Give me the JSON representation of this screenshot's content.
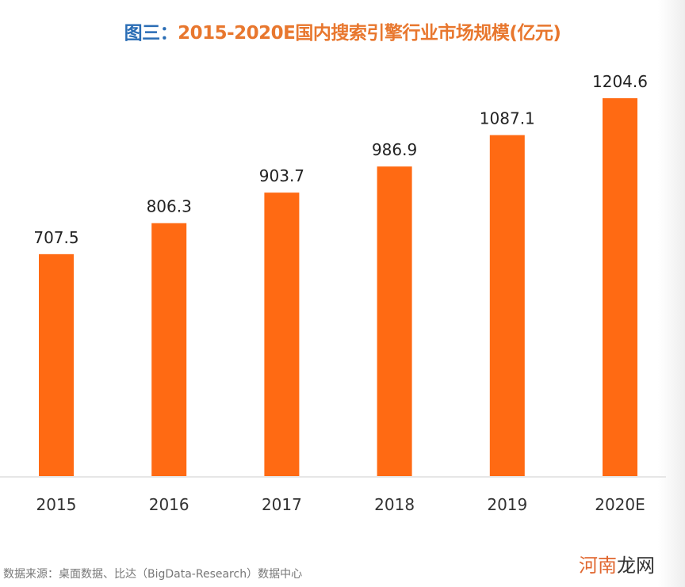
{
  "chart_data": {
    "type": "bar",
    "title_prefix": "图三：",
    "title": "2015-2020E国内搜索引擎行业市场规模(亿元)",
    "categories": [
      "2015",
      "2016",
      "2017",
      "2018",
      "2019",
      "2020E"
    ],
    "values": [
      707.5,
      806.3,
      903.7,
      986.9,
      1087.1,
      1204.6
    ],
    "data_labels": [
      "707.5",
      "806.3",
      "903.7",
      "986.9",
      "1087.1",
      "1204.6"
    ],
    "ylim": [
      0,
      1204.6
    ],
    "grid": false,
    "bar_color": "#ff6a13",
    "title_prefix_color": "#2a6db5",
    "title_color": "#e8772e"
  },
  "source": "数据来源：桌面数据、比达（BigData-Research）数据中心",
  "watermark": {
    "part1": "河南",
    "part2": "龙网"
  }
}
